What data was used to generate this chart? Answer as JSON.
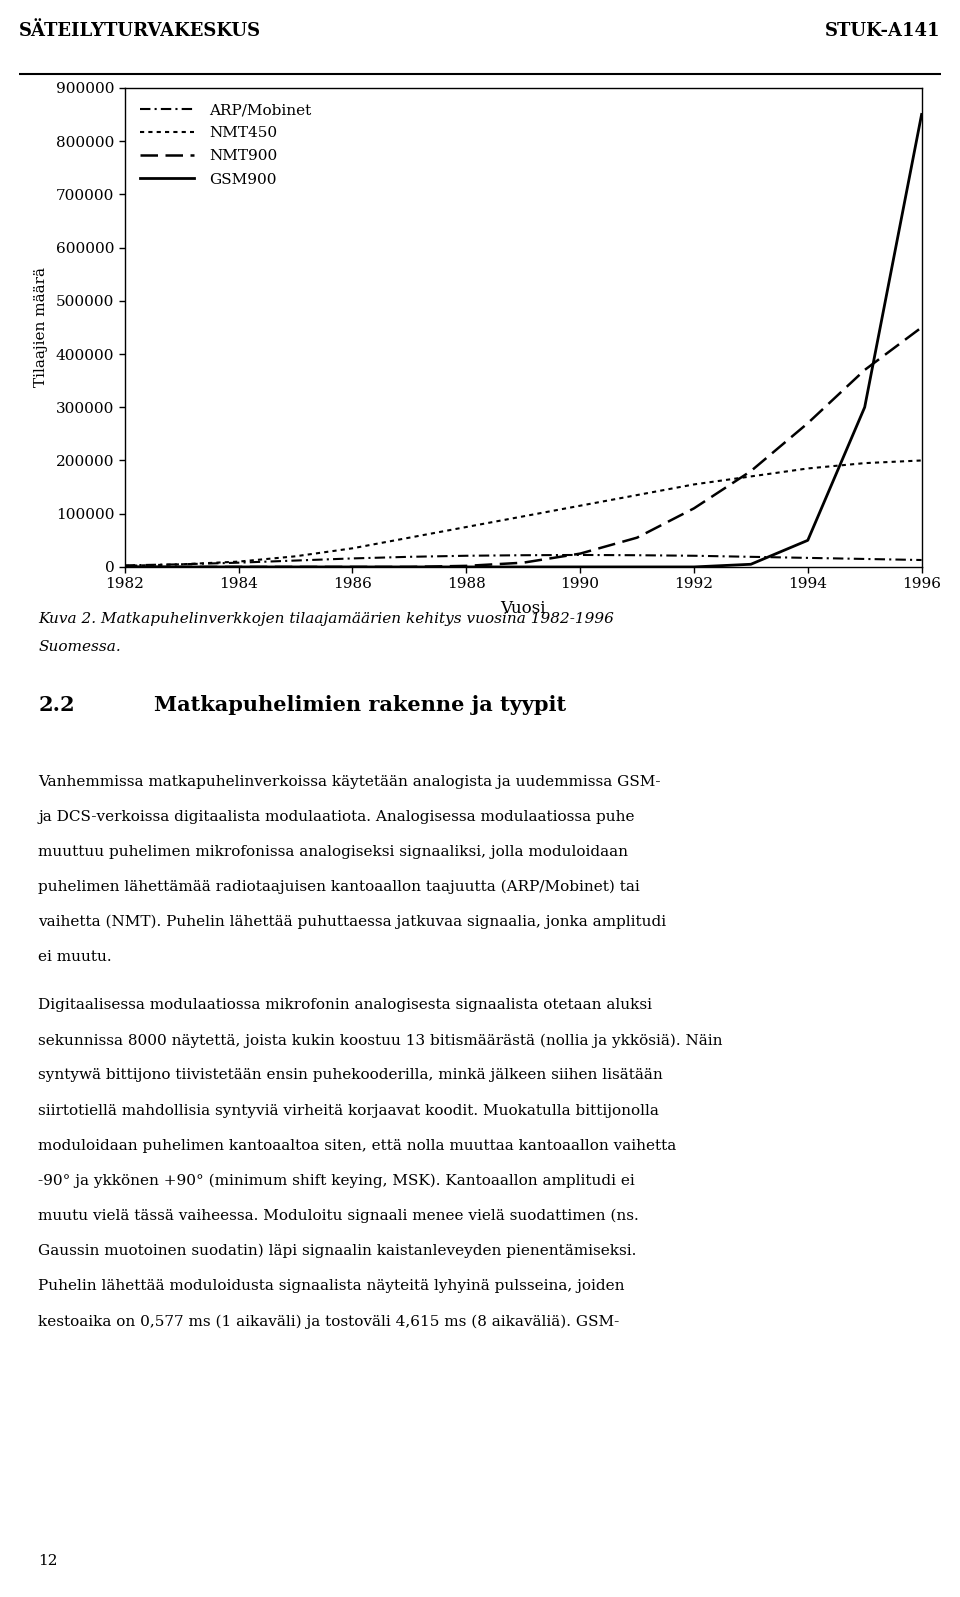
{
  "years": [
    1982,
    1983,
    1984,
    1985,
    1986,
    1987,
    1988,
    1989,
    1990,
    1991,
    1992,
    1993,
    1994,
    1995,
    1996
  ],
  "ARP_Mobinet": [
    3000,
    5000,
    8000,
    12000,
    16000,
    19000,
    21000,
    22000,
    22500,
    22000,
    21000,
    19000,
    17000,
    15000,
    13000
  ],
  "NMT450": [
    2000,
    5000,
    10000,
    20000,
    35000,
    55000,
    75000,
    95000,
    115000,
    135000,
    155000,
    170000,
    185000,
    195000,
    200000
  ],
  "NMT900": [
    0,
    0,
    0,
    0,
    0,
    0,
    2000,
    8000,
    25000,
    55000,
    110000,
    180000,
    270000,
    370000,
    450000
  ],
  "GSM900": [
    0,
    0,
    0,
    0,
    0,
    0,
    0,
    0,
    0,
    0,
    0,
    5000,
    50000,
    300000,
    850000
  ],
  "header_left": "SÄTEILYTURVAKESKUS",
  "header_right": "STUK-A141",
  "xlabel": "Vuosi",
  "ylabel": "Tilaajien määrä",
  "ylim": [
    0,
    900000
  ],
  "xlim": [
    1982,
    1996
  ],
  "yticks": [
    0,
    100000,
    200000,
    300000,
    400000,
    500000,
    600000,
    700000,
    800000,
    900000
  ],
  "xticks": [
    1982,
    1984,
    1986,
    1988,
    1990,
    1992,
    1994,
    1996
  ],
  "legend_labels": [
    "ARP/Mobinet",
    "NMT450",
    "NMT900",
    "GSM900"
  ],
  "caption_line1": "Kuva 2. Matkapuhelinverkkojen tilaajamäärien kehitys vuosina 1982-1996",
  "caption_line2": "Suomessa.",
  "section_num": "2.2",
  "section_title": "Matkapuhelimien rakenne ja tyypit",
  "body_text_lines": [
    "Vanhemmissa matkapuhelinverkoissa käytetään analogista ja uudemmissa GSM-",
    "ja DCS-verkoissa digitaalista modulaatiota. Analogisessa modulaatiossa puhe",
    "muuttuu puhelimen mikrofonissa analogiseksi signaaliksi, jolla moduloidaan",
    "puhelimen lähettämää radiotaajuisen kantoaallon taajuutta (ARP/Mobinet) tai",
    "vaihetta (NMT). Puhelin lähettää puhuttaessa jatkuvaa signaalia, jonka amplitudi",
    "ei muutu."
  ],
  "body_text2_lines": [
    "Digitaalisessa modulaatiossa mikrofonin analogisesta signaalista otetaan aluksi",
    "sekunnissa 8000 näytettä, joista kukin koostuu 13 bitismäärästä (nollia ja ykkösiä). Näin",
    "syntywä bittijono tiivistetään ensin puhekooderilla, minkä jälkeen siihen lisätään",
    "siirtotiellä mahdollisia syntyviä virheitä korjaavat koodit. Muokatulla bittijonolla",
    "moduloidaan puhelimen kantoaaltoa siten, että nolla muuttaa kantoaallon vaihetta",
    "-90° ja ykkönen +90° (minimum shift keying, MSK). Kantoaallon amplitudi ei",
    "muutu vielä tässä vaiheessa. Moduloitu signaali menee vielä suodattimen (ns.",
    "Gaussin muotoinen suodatin) läpi signaalin kaistanleveyden pienentämiseksi.",
    "Puhelin lähettää moduloidusta signaalista näyteitä lyhyinä pulsseina, joiden",
    "kestoaika on 0,577 ms (1 aikaväli) ja tostoväli 4,615 ms (8 aikaväliä). GSM-"
  ],
  "page_num": "12",
  "background_color": "#ffffff"
}
